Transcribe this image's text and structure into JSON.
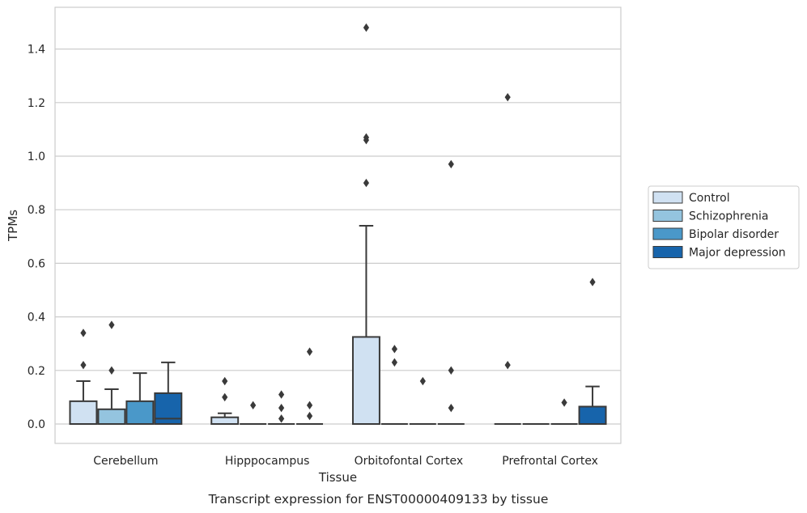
{
  "chart_data": {
    "type": "box",
    "xlabel": "Tissue",
    "ylabel": "TPMs",
    "caption": "Transcript expression for ENST00000409133 by tissue",
    "ylim": [
      -0.07,
      1.56
    ],
    "yticks": [
      "0.0",
      "0.2",
      "0.4",
      "0.6",
      "0.8",
      "1.0",
      "1.2",
      "1.4"
    ],
    "grid": "horizontal",
    "legend_position": "right",
    "categories": [
      "Cerebellum",
      "Hipppocampus",
      "Orbitofontal Cortex",
      "Prefrontal Cortex"
    ],
    "series": [
      {
        "name": "Control",
        "color": "#d0e1f2",
        "boxes": [
          {
            "q1": 0.0,
            "median": 0.0,
            "q3": 0.085,
            "whisker_low": 0.0,
            "whisker_high": 0.16,
            "outliers": [
              0.22,
              0.34
            ]
          },
          {
            "q1": 0.0,
            "median": 0.0,
            "q3": 0.025,
            "whisker_low": 0.0,
            "whisker_high": 0.04,
            "outliers": [
              0.1,
              0.16
            ]
          },
          {
            "q1": 0.0,
            "median": 0.0,
            "q3": 0.325,
            "whisker_low": 0.0,
            "whisker_high": 0.74,
            "outliers": [
              0.9,
              1.06,
              1.07,
              1.48
            ]
          },
          {
            "q1": 0.0,
            "median": 0.0,
            "q3": 0.0,
            "whisker_low": 0.0,
            "whisker_high": 0.0,
            "outliers": [
              0.22,
              1.22
            ]
          }
        ]
      },
      {
        "name": "Schizophrenia",
        "color": "#94c4df",
        "boxes": [
          {
            "q1": 0.0,
            "median": 0.0,
            "q3": 0.055,
            "whisker_low": 0.0,
            "whisker_high": 0.13,
            "outliers": [
              0.2,
              0.37
            ]
          },
          {
            "q1": 0.0,
            "median": 0.0,
            "q3": 0.0,
            "whisker_low": 0.0,
            "whisker_high": 0.0,
            "outliers": [
              0.07
            ]
          },
          {
            "q1": 0.0,
            "median": 0.0,
            "q3": 0.0,
            "whisker_low": 0.0,
            "whisker_high": 0.0,
            "outliers": [
              0.23,
              0.28
            ]
          },
          {
            "q1": 0.0,
            "median": 0.0,
            "q3": 0.0,
            "whisker_low": 0.0,
            "whisker_high": 0.0,
            "outliers": []
          }
        ]
      },
      {
        "name": "Bipolar disorder",
        "color": "#4a98c9",
        "boxes": [
          {
            "q1": 0.0,
            "median": 0.0,
            "q3": 0.085,
            "whisker_low": 0.0,
            "whisker_high": 0.19,
            "outliers": []
          },
          {
            "q1": 0.0,
            "median": 0.0,
            "q3": 0.0,
            "whisker_low": 0.0,
            "whisker_high": 0.0,
            "outliers": [
              0.02,
              0.06,
              0.11
            ]
          },
          {
            "q1": 0.0,
            "median": 0.0,
            "q3": 0.0,
            "whisker_low": 0.0,
            "whisker_high": 0.0,
            "outliers": [
              0.16
            ]
          },
          {
            "q1": 0.0,
            "median": 0.0,
            "q3": 0.0,
            "whisker_low": 0.0,
            "whisker_high": 0.0,
            "outliers": [
              0.08
            ]
          }
        ]
      },
      {
        "name": "Major depression",
        "color": "#1764ab",
        "boxes": [
          {
            "q1": 0.0,
            "median": 0.02,
            "q3": 0.115,
            "whisker_low": 0.0,
            "whisker_high": 0.23,
            "outliers": []
          },
          {
            "q1": 0.0,
            "median": 0.0,
            "q3": 0.0,
            "whisker_low": 0.0,
            "whisker_high": 0.0,
            "outliers": [
              0.03,
              0.07,
              0.27
            ]
          },
          {
            "q1": 0.0,
            "median": 0.0,
            "q3": 0.0,
            "whisker_low": 0.0,
            "whisker_high": 0.0,
            "outliers": [
              0.06,
              0.2,
              0.97
            ]
          },
          {
            "q1": 0.0,
            "median": 0.0,
            "q3": 0.065,
            "whisker_low": 0.0,
            "whisker_high": 0.14,
            "outliers": [
              0.53
            ]
          }
        ]
      }
    ]
  }
}
